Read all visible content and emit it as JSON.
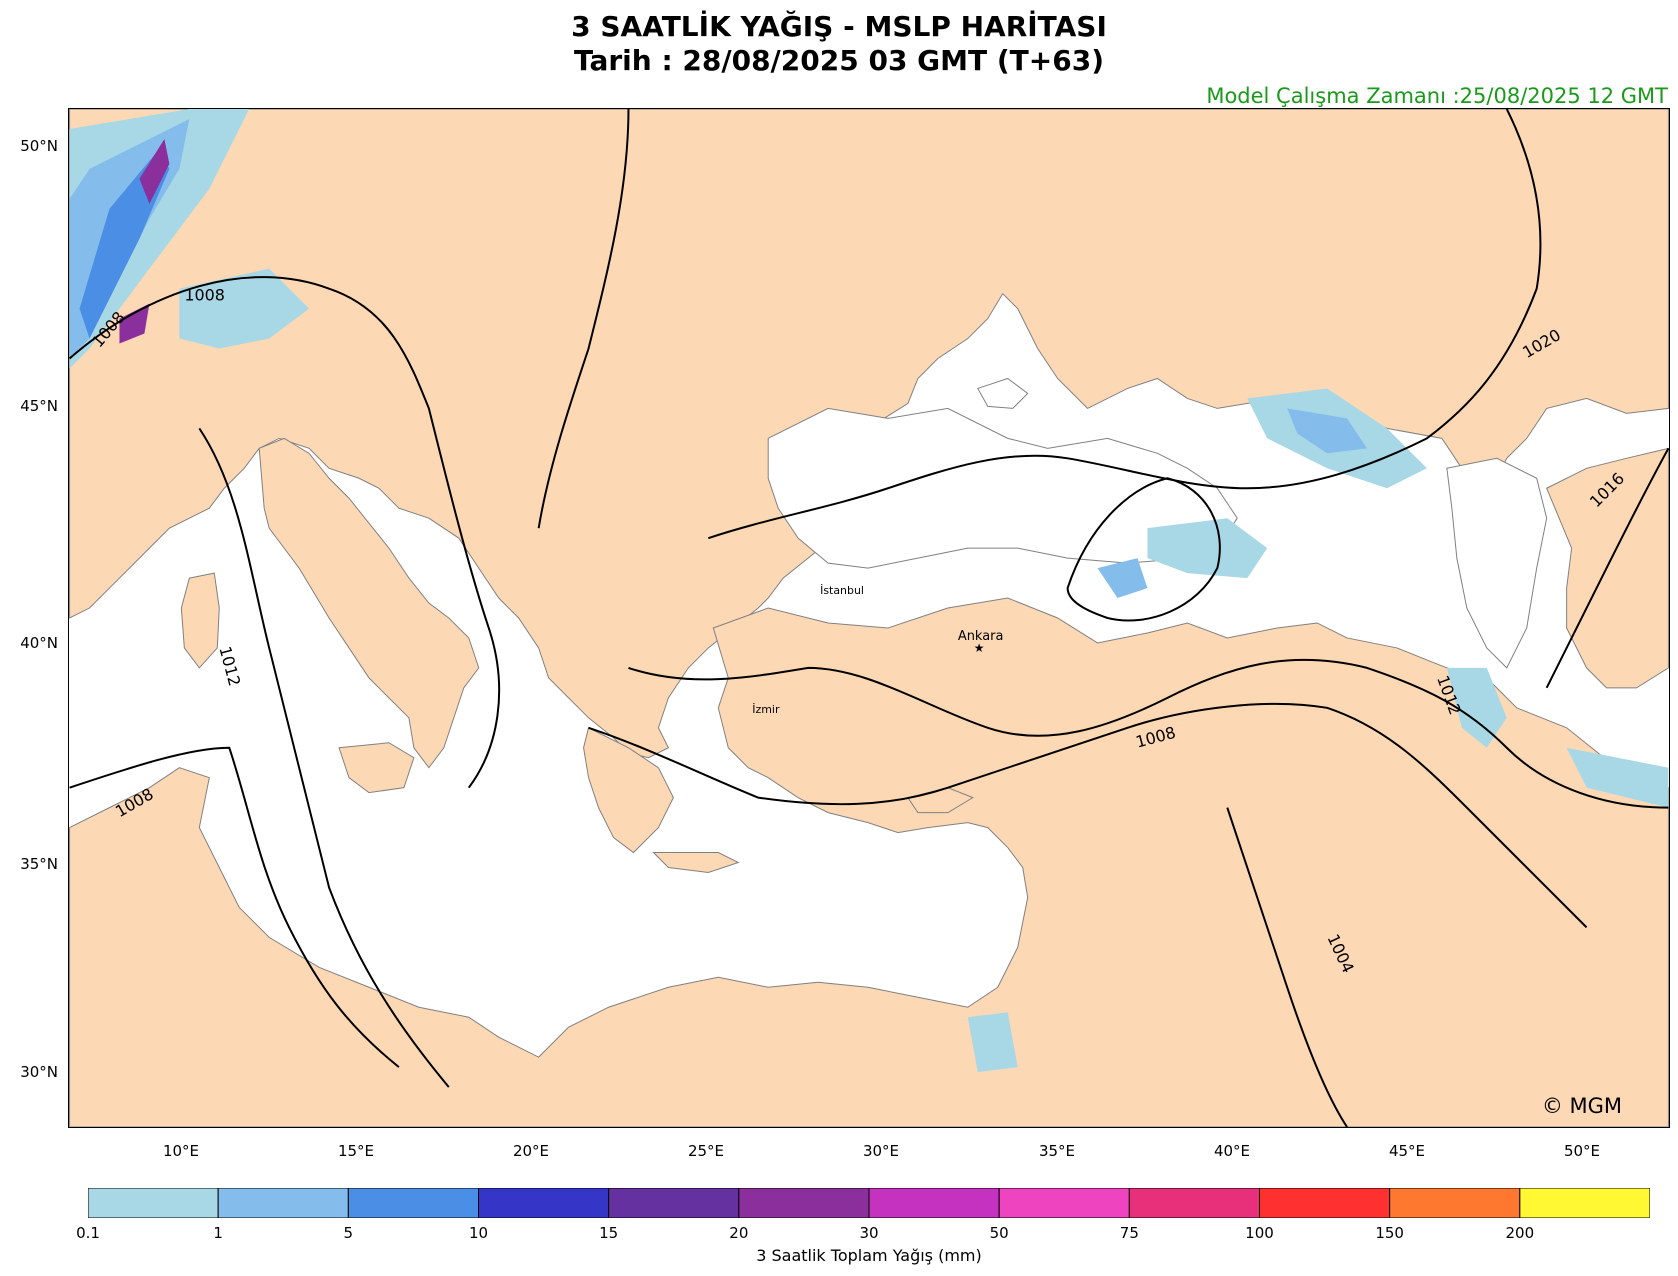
{
  "title": {
    "line1": "3 SAATLİK YAĞIŞ - MSLP HARİTASI",
    "line2": "Tarih : 28/08/2025  03 GMT (T+63)"
  },
  "run_time": "Model Çalışma Zamanı :25/08/2025  12 GMT",
  "latitude_labels": [
    "50°N",
    "45°N",
    "40°N",
    "35°N",
    "30°N"
  ],
  "longitude_labels": [
    "10°E",
    "15°E",
    "20°E",
    "25°E",
    "30°E",
    "35°E",
    "40°E",
    "45°E",
    "50°E"
  ],
  "cities": [
    {
      "name": "İstanbul",
      "lon": 28.97,
      "lat": 41.01
    },
    {
      "name": "Ankara",
      "lon": 32.85,
      "lat": 39.93
    },
    {
      "name": "İzmir",
      "lon": 27.14,
      "lat": 38.42
    }
  ],
  "isobar_labels": [
    "1008",
    "1008",
    "1008",
    "1012",
    "1008",
    "1012",
    "1004",
    "1016",
    "1020"
  ],
  "colorbar": {
    "title": "3 Saatlik Toplam Yağış (mm)",
    "ticks": [
      "0.1",
      "1",
      "5",
      "10",
      "15",
      "20",
      "30",
      "50",
      "75",
      "100",
      "150",
      "200"
    ],
    "colors": [
      "#a8d8e6",
      "#84bdeb",
      "#4a8ee6",
      "#3536c8",
      "#6530a0",
      "#8a2f9c",
      "#c632c0",
      "#ee44c0",
      "#e8307a",
      "#ff3030",
      "#ff7830",
      "#fff832"
    ]
  },
  "copyright": "© MGM",
  "colors": {
    "land": "#fdd8b4",
    "sea": "#ffffff",
    "runtime": "#1a9a1a"
  }
}
